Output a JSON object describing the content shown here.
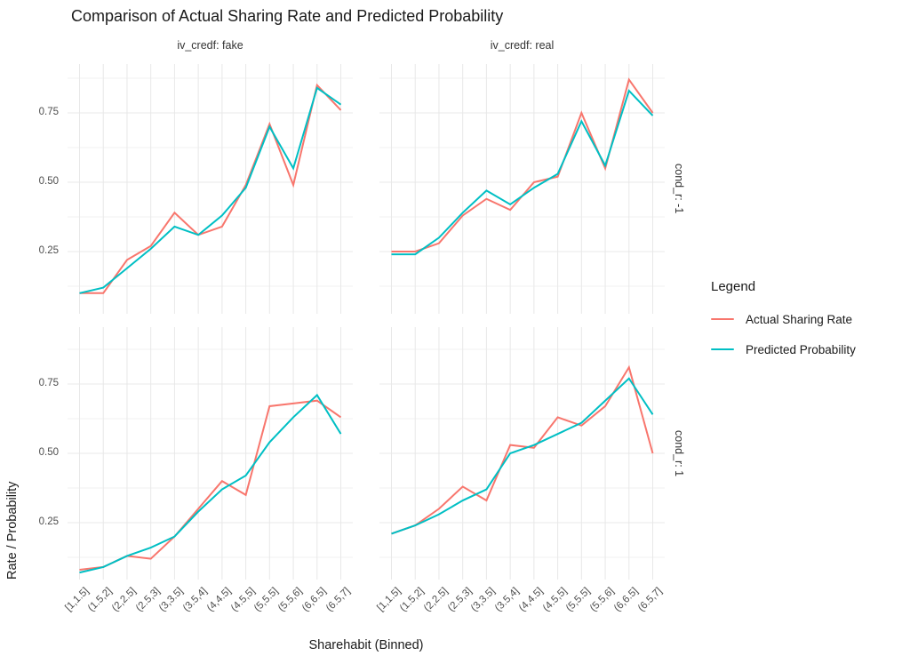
{
  "chart_data": {
    "type": "line",
    "title": "Comparison of Actual Sharing Rate and Predicted Probability",
    "xlabel": "Sharehabit (Binned)",
    "ylabel": "Rate / Probability",
    "categories": [
      "[1,1.5]",
      "(1.5,2]",
      "(2,2.5]",
      "(2.5,3]",
      "(3,3.5]",
      "(3.5,4]",
      "(4,4.5]",
      "(4.5,5]",
      "(5,5.5]",
      "(5.5,6]",
      "(6,6.5]",
      "(6.5,7]"
    ],
    "y_ticks": {
      "values": [
        0.25,
        0.5,
        0.75
      ],
      "labels": [
        "0.25",
        "0.50",
        "0.75"
      ]
    },
    "y_minor": [
      0.125,
      0.375,
      0.625,
      0.875
    ],
    "ylim": [
      0.03,
      0.93
    ],
    "grid": true,
    "legend_position": "right",
    "facet_cols": [
      "iv_credf: fake",
      "iv_credf: real"
    ],
    "facet_rows": [
      "cond_r: -1",
      "cond_r: 1"
    ],
    "panels": [
      {
        "col": 0,
        "row": 0,
        "actual": [
          0.1,
          0.1,
          0.22,
          0.27,
          0.39,
          0.31,
          0.34,
          0.49,
          0.71,
          0.49,
          0.85,
          0.76
        ],
        "predicted": [
          0.1,
          0.12,
          0.19,
          0.26,
          0.34,
          0.31,
          0.38,
          0.48,
          0.7,
          0.55,
          0.84,
          0.78
        ]
      },
      {
        "col": 1,
        "row": 0,
        "actual": [
          0.25,
          0.25,
          0.28,
          0.38,
          0.44,
          0.4,
          0.5,
          0.52,
          0.75,
          0.55,
          0.87,
          0.75
        ],
        "predicted": [
          0.24,
          0.24,
          0.3,
          0.39,
          0.47,
          0.42,
          0.48,
          0.53,
          0.72,
          0.56,
          0.83,
          0.74
        ]
      },
      {
        "col": 0,
        "row": 1,
        "actual": [
          0.08,
          0.09,
          0.13,
          0.12,
          0.2,
          0.3,
          0.4,
          0.35,
          0.67,
          0.68,
          0.69,
          0.63
        ],
        "predicted": [
          0.07,
          0.09,
          0.13,
          0.16,
          0.2,
          0.29,
          0.37,
          0.42,
          0.54,
          0.63,
          0.71,
          0.57
        ]
      },
      {
        "col": 1,
        "row": 1,
        "actual": [
          0.21,
          0.24,
          0.3,
          0.38,
          0.33,
          0.53,
          0.52,
          0.63,
          0.6,
          0.67,
          0.81,
          0.5
        ],
        "predicted": [
          0.21,
          0.24,
          0.28,
          0.33,
          0.37,
          0.5,
          0.53,
          0.57,
          0.61,
          0.69,
          0.77,
          0.64
        ]
      }
    ],
    "legend": {
      "title": "Legend",
      "entries": [
        {
          "label": "Actual Sharing Rate",
          "color": "#F8766D"
        },
        {
          "label": "Predicted Probability",
          "color": "#00BFC4"
        }
      ]
    },
    "colors": {
      "actual": "#F8766D",
      "predicted": "#00BFC4",
      "grid_major": "#E8E8E8",
      "grid_minor": "#F1F1F1",
      "tick_text": "#4D4D4D",
      "strip_text": "#333333",
      "title_text": "#1A1A1A"
    }
  }
}
